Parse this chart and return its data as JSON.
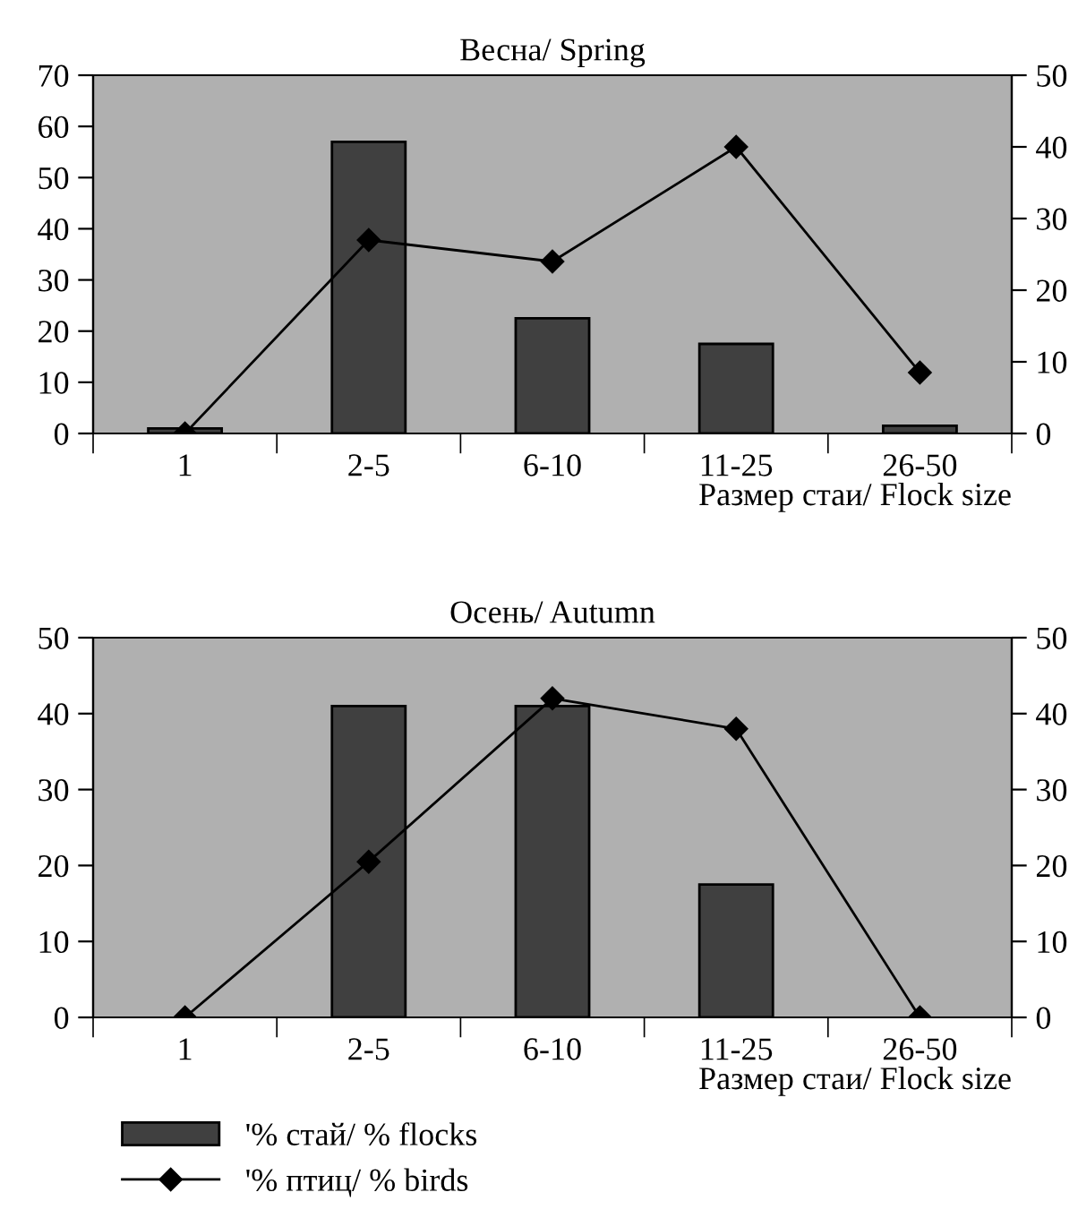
{
  "chart_data": [
    {
      "type": "bar",
      "title": "Весна/ Spring",
      "xlabel": "Размер стаи/ Flock size",
      "categories": [
        "1",
        "2-5",
        "6-10",
        "11-25",
        "26-50"
      ],
      "series": [
        {
          "color": "#404040",
          "values": [
            1,
            57,
            22.5,
            17.5,
            1.5
          ]
        },
        {
          "type": "line",
          "axis": "y2",
          "color": "#000000",
          "values": [
            0,
            27,
            24,
            40,
            8.5
          ]
        }
      ],
      "ylim": [
        0,
        70
      ],
      "yticks": [
        0,
        10,
        20,
        30,
        40,
        50,
        60,
        70
      ],
      "y2lim": [
        0,
        50
      ],
      "y2ticks": [
        0,
        10,
        20,
        30,
        40,
        50
      ],
      "marker": "diamond",
      "legend": false
    },
    {
      "type": "bar",
      "title": "Осень/ Autumn",
      "xlabel": "Размер стаи/ Flock size",
      "categories": [
        "1",
        "2-5",
        "6-10",
        "11-25",
        "26-50"
      ],
      "series": [
        {
          "name": "'% стай/ % flocks",
          "color": "#404040",
          "values": [
            null,
            41,
            41,
            17.5,
            null
          ]
        },
        {
          "type": "line",
          "axis": "y2",
          "name": "'% птиц/ % birds",
          "color": "#000000",
          "values": [
            0,
            20.5,
            42,
            38,
            0
          ]
        }
      ],
      "ylim": [
        0,
        50
      ],
      "yticks": [
        0,
        10,
        20,
        30,
        40,
        50
      ],
      "y2lim": [
        0,
        50
      ],
      "y2ticks": [
        0,
        10,
        20,
        30,
        40,
        50
      ],
      "marker": "diamond",
      "legend": "bottom left"
    }
  ]
}
